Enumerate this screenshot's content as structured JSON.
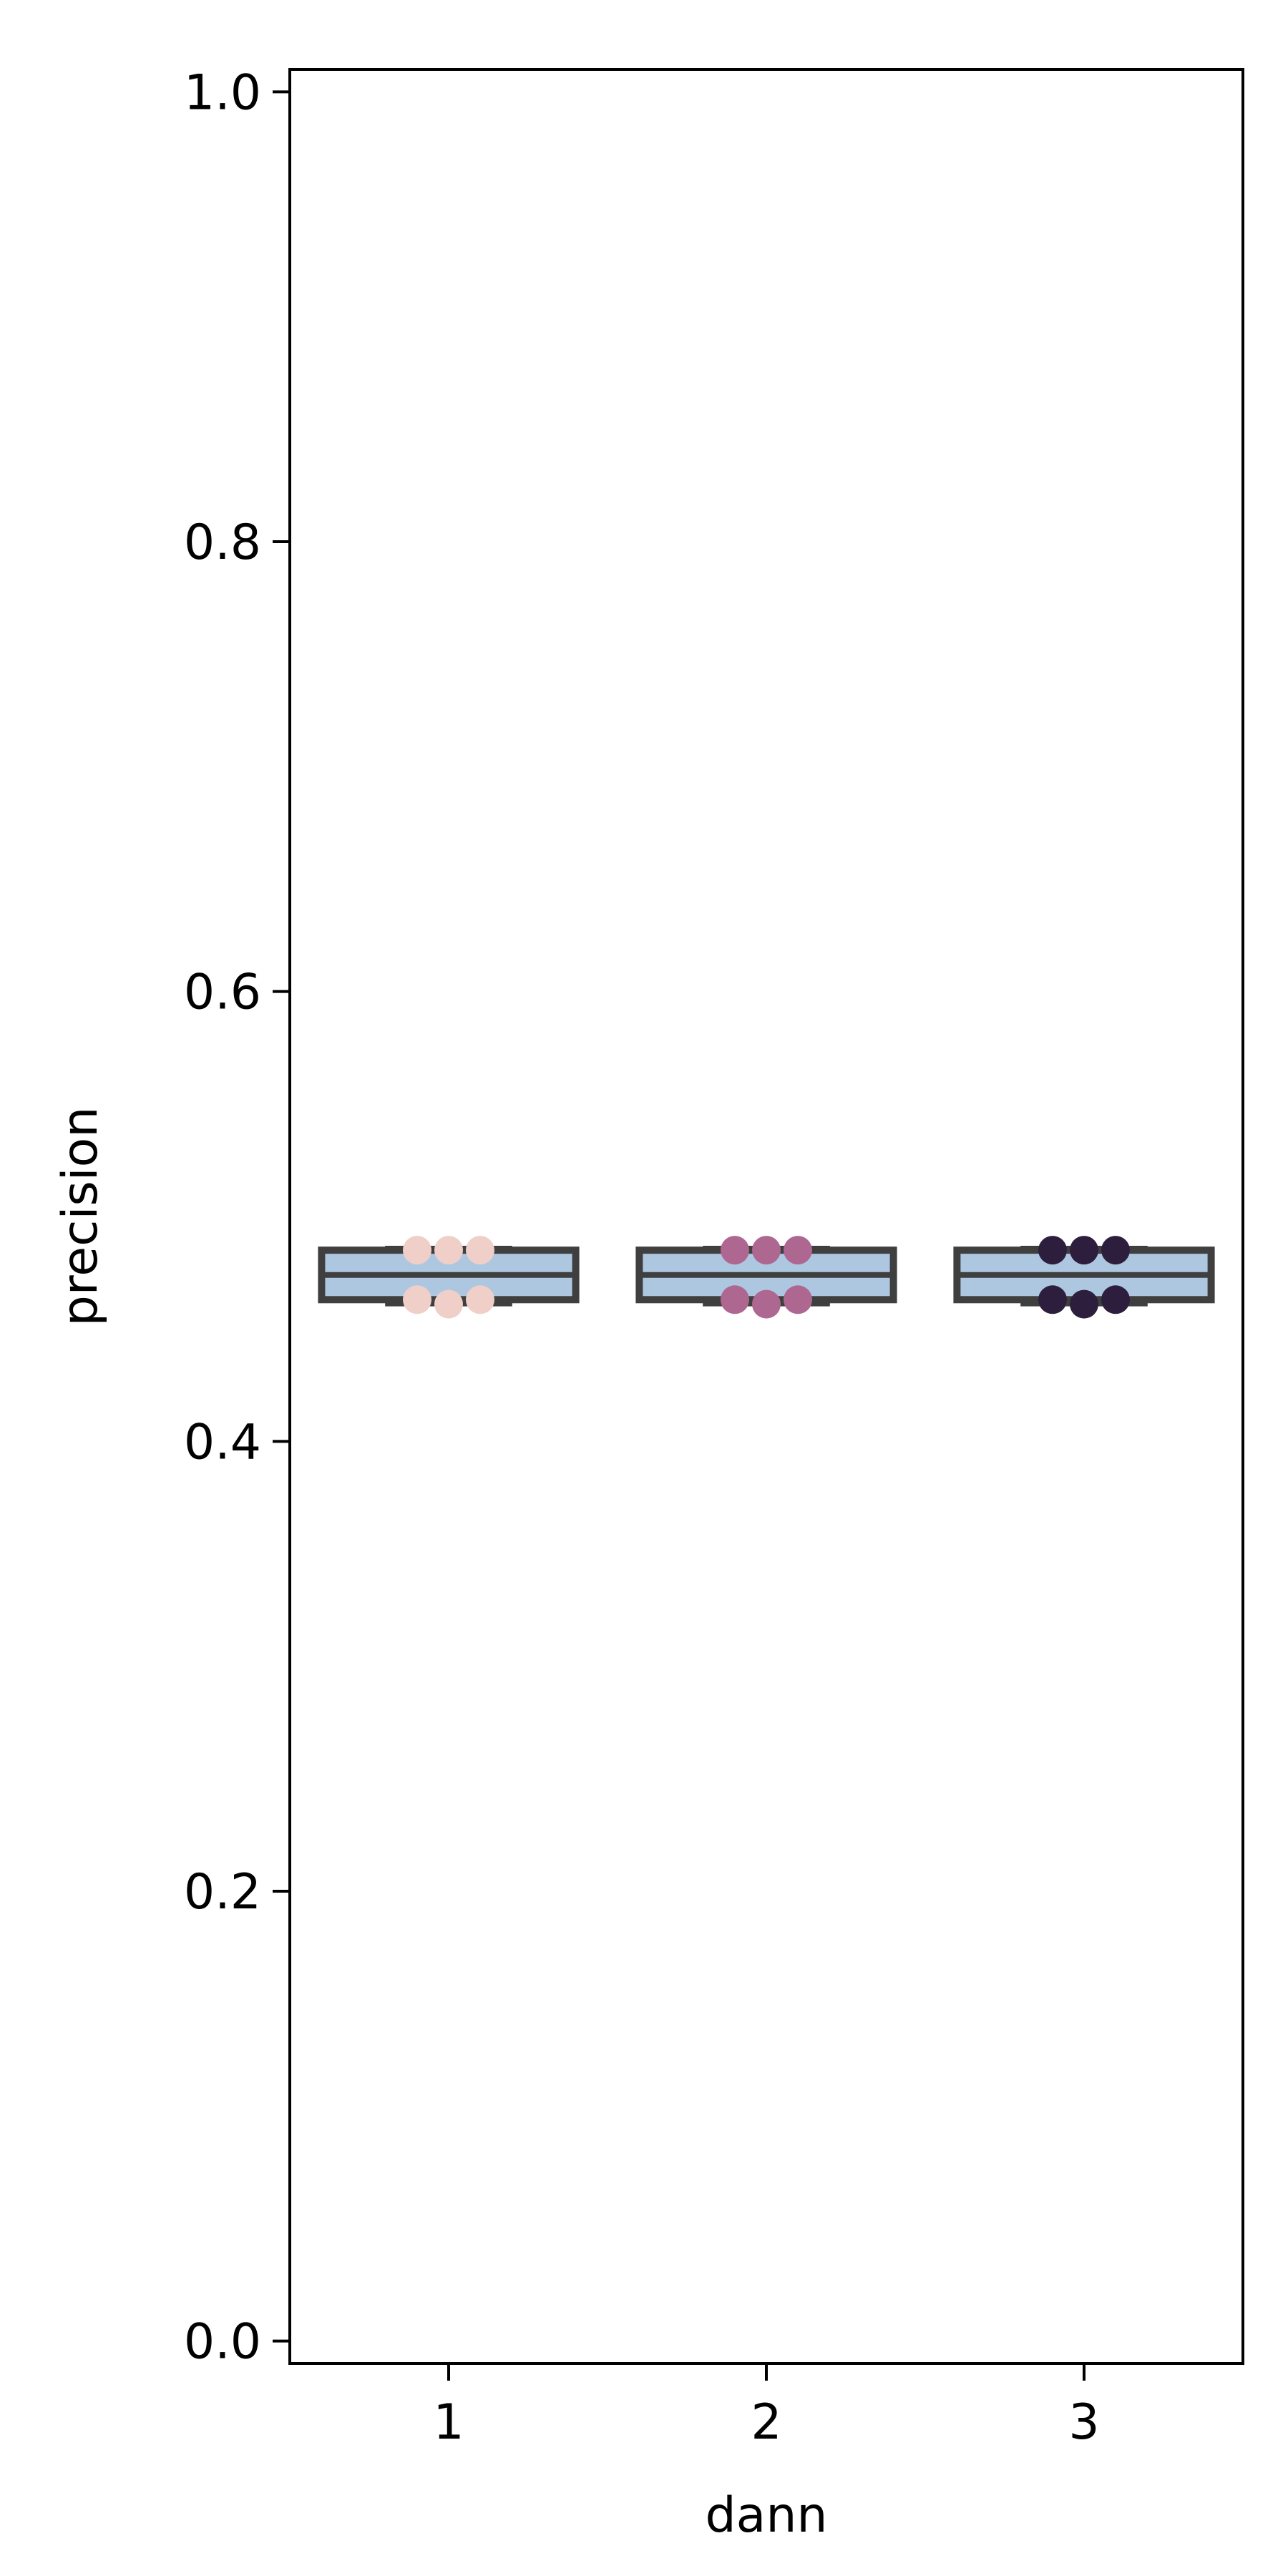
{
  "chart_data": {
    "type": "box",
    "xlabel": "dann",
    "ylabel": "precision",
    "ylim": [
      -0.01,
      1.01
    ],
    "yticks": [
      0.0,
      0.2,
      0.4,
      0.6,
      0.8,
      1.0
    ],
    "ytick_labels": [
      "0.0",
      "0.2",
      "0.4",
      "0.6",
      "0.8",
      "1.0"
    ],
    "categories": [
      "1",
      "2",
      "3"
    ],
    "grid": false,
    "legend": "none",
    "boxes": [
      {
        "category": "1",
        "whisker_low": 0.461,
        "q1": 0.463,
        "median": 0.474,
        "q3": 0.485,
        "whisker_high": 0.486
      },
      {
        "category": "2",
        "whisker_low": 0.461,
        "q1": 0.463,
        "median": 0.474,
        "q3": 0.485,
        "whisker_high": 0.486
      },
      {
        "category": "3",
        "whisker_low": 0.461,
        "q1": 0.463,
        "median": 0.474,
        "q3": 0.485,
        "whisker_high": 0.486
      }
    ],
    "points": [
      {
        "category": "1",
        "color": "#efcfc7",
        "values": [
          0.485,
          0.485,
          0.485,
          0.463,
          0.461,
          0.463
        ]
      },
      {
        "category": "2",
        "color": "#ae6791",
        "values": [
          0.485,
          0.485,
          0.485,
          0.463,
          0.461,
          0.463
        ]
      },
      {
        "category": "3",
        "color": "#2d1e3e",
        "values": [
          0.485,
          0.485,
          0.485,
          0.463,
          0.461,
          0.463
        ]
      }
    ],
    "colors": {
      "box_fill": "#aec7e1",
      "box_edge": "#3f3f3f",
      "axis": "#000000"
    }
  }
}
